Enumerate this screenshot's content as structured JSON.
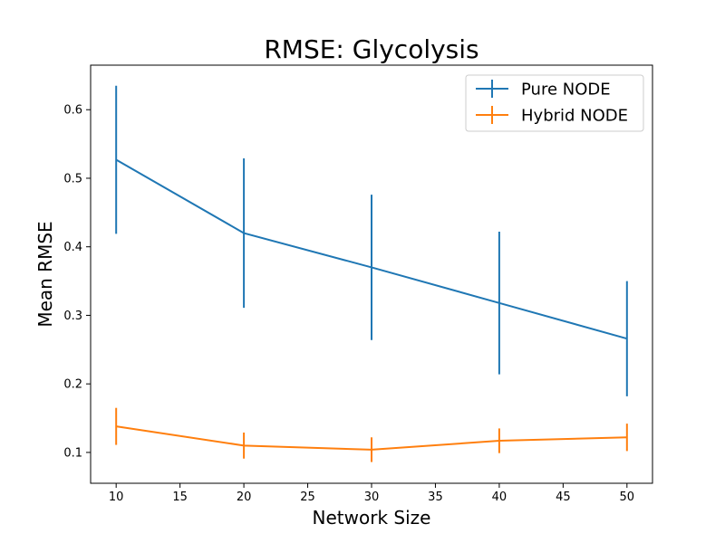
{
  "chart_data": {
    "type": "line",
    "title": "RMSE: Glycolysis",
    "xlabel": "Network Size",
    "ylabel": "Mean RMSE",
    "x": [
      10,
      20,
      30,
      40,
      50
    ],
    "xlim": [
      8,
      52
    ],
    "ylim": [
      0.055,
      0.665
    ],
    "xticks": [
      10,
      15,
      20,
      25,
      30,
      35,
      40,
      45,
      50
    ],
    "yticks": [
      0.1,
      0.2,
      0.3,
      0.4,
      0.5,
      0.6
    ],
    "grid": false,
    "legend_position": "top-right",
    "series": [
      {
        "name": "Pure NODE",
        "color": "#1f77b4",
        "values": [
          0.527,
          0.42,
          0.37,
          0.318,
          0.266
        ],
        "errors": [
          0.108,
          0.109,
          0.106,
          0.104,
          0.084
        ]
      },
      {
        "name": "Hybrid NODE",
        "color": "#ff7f0e",
        "values": [
          0.138,
          0.11,
          0.104,
          0.117,
          0.122
        ],
        "errors": [
          0.027,
          0.019,
          0.018,
          0.018,
          0.02
        ]
      }
    ]
  }
}
